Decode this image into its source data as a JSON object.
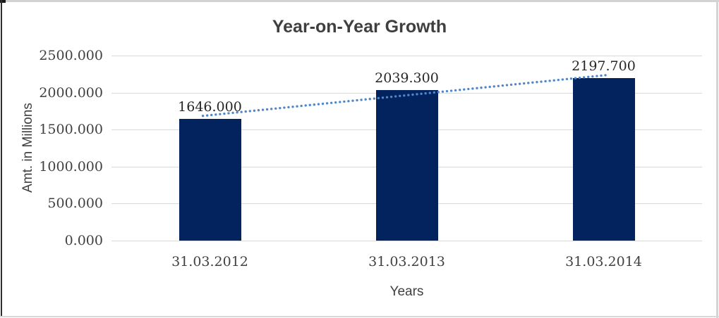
{
  "window": {
    "border_top_color": "#d2d2d2",
    "border_left_color": "#2e2e2e",
    "border_right_color": "#d4d4d4",
    "border_bottom_color": "#d8d8d8"
  },
  "chart_data": {
    "type": "bar",
    "title": "Year-on-Year Growth",
    "xlabel": "Years",
    "ylabel": "Amt. in Millions",
    "categories": [
      "31.03.2012",
      "31.03.2013",
      "31.03.2014"
    ],
    "values": [
      1646.0,
      2039.3,
      2197.7
    ],
    "data_labels": [
      "1646.000",
      "2039.300",
      "2197.700"
    ],
    "y_ticks": [
      {
        "value": 2500,
        "label": "2500.000"
      },
      {
        "value": 2000,
        "label": "2000.000"
      },
      {
        "value": 1500,
        "label": "1500.000"
      },
      {
        "value": 1000,
        "label": "1000.000"
      },
      {
        "value": 500,
        "label": "500.000"
      },
      {
        "value": 0,
        "label": "0.000"
      }
    ],
    "ylim": [
      0,
      2500
    ],
    "grid": true,
    "legend_position": "none",
    "bar_color": "#03235e",
    "grid_color": "#d9d9d9",
    "title_color": "#3f3f3f",
    "text_color": "#404040",
    "trendline": {
      "type": "linear",
      "style": "dotted",
      "color": "#4f87cb",
      "start_value": 1685,
      "end_value": 2237
    }
  }
}
